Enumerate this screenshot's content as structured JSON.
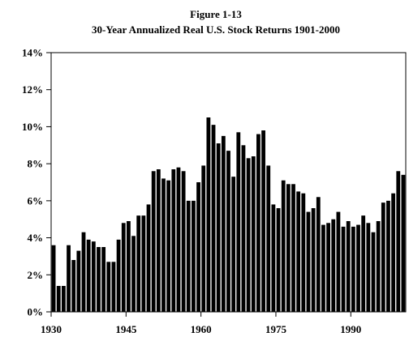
{
  "chart_data": {
    "type": "bar",
    "title": "Figure 1-13",
    "subtitle": "30-Year Annualized Real U.S. Stock Returns 1901-2000",
    "xlabel": "",
    "ylabel": "",
    "x_start": 1930,
    "x_end": 2000,
    "ylim": [
      0,
      14
    ],
    "x_ticks": [
      1930,
      1945,
      1960,
      1975,
      1990
    ],
    "x_tick_labels": [
      "1930",
      "1945",
      "1960",
      "1975",
      "1990"
    ],
    "y_ticks": [
      0,
      2,
      4,
      6,
      8,
      10,
      12,
      14
    ],
    "y_tick_labels": [
      "0%",
      "2%",
      "4%",
      "6%",
      "8%",
      "10%",
      "12%",
      "14%"
    ],
    "grid": false,
    "bar_color": "#000000",
    "values": [
      3.6,
      1.4,
      1.4,
      3.6,
      2.8,
      3.3,
      4.3,
      3.9,
      3.8,
      3.5,
      3.5,
      2.7,
      2.7,
      3.9,
      4.8,
      4.9,
      4.1,
      5.2,
      5.2,
      5.8,
      7.6,
      7.7,
      7.2,
      7.1,
      7.7,
      7.8,
      7.6,
      6.0,
      6.0,
      7.0,
      7.9,
      10.5,
      10.1,
      9.1,
      9.5,
      8.7,
      7.3,
      9.7,
      9.0,
      8.3,
      8.4,
      9.6,
      9.8,
      7.9,
      5.8,
      5.6,
      7.1,
      6.9,
      6.9,
      6.5,
      6.4,
      5.4,
      5.6,
      6.2,
      4.7,
      4.8,
      5.0,
      5.4,
      4.6,
      4.9,
      4.6,
      4.7,
      5.2,
      4.8,
      4.3,
      4.9,
      5.9,
      6.0,
      6.4,
      7.6,
      7.4
    ]
  }
}
